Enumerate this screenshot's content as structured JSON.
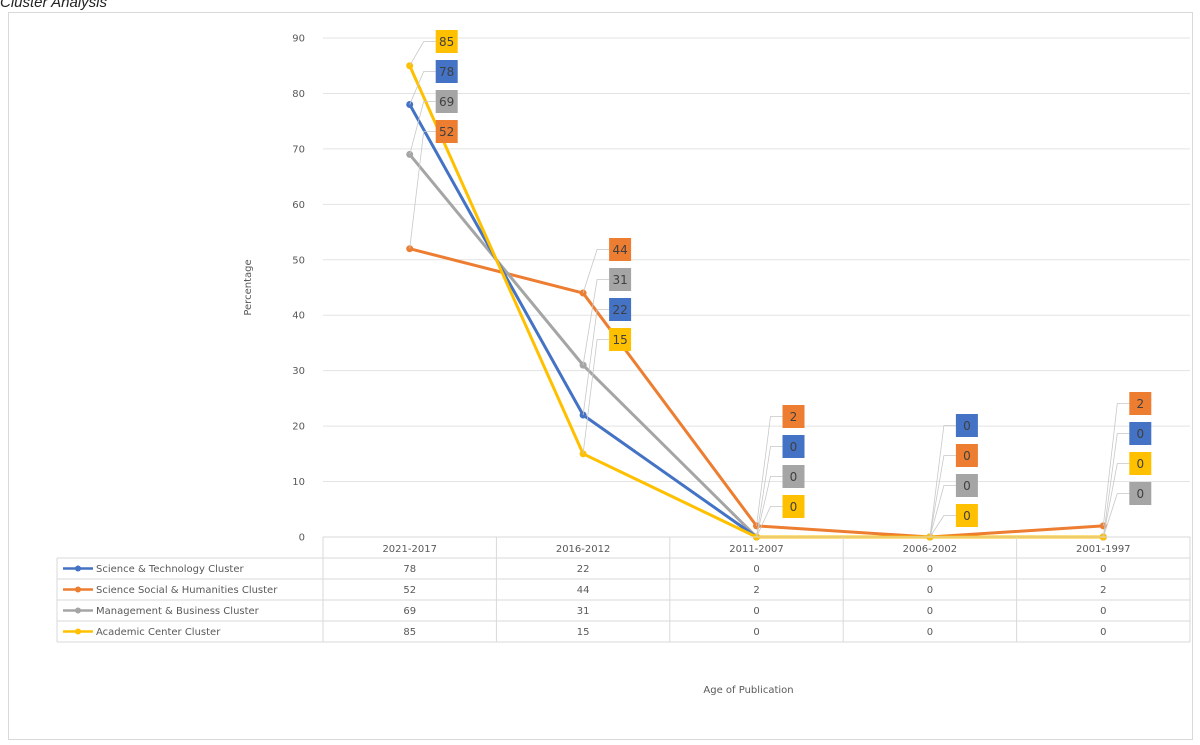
{
  "caption": "Cluster Analysis",
  "chart_data": {
    "type": "line",
    "title": "",
    "xlabel": "Age of Publication",
    "ylabel": "Percentage",
    "ylim": [
      0,
      90
    ],
    "yticks": [
      0,
      10,
      20,
      30,
      40,
      50,
      60,
      70,
      80,
      90
    ],
    "grid": true,
    "legend": "data-table",
    "categories": [
      "2021-2017",
      "2016-2012",
      "2011-2007",
      "2006-2002",
      "2001-1997"
    ],
    "series": [
      {
        "name": "Science & Technology Cluster",
        "color": "#4472c4",
        "values": [
          78,
          22,
          0,
          0,
          0
        ]
      },
      {
        "name": "Science Social & Humanities Cluster",
        "color": "#ed7d31",
        "values": [
          52,
          44,
          2,
          0,
          2
        ]
      },
      {
        "name": "Management & Business Cluster",
        "color": "#a5a5a5",
        "values": [
          69,
          31,
          0,
          0,
          0
        ]
      },
      {
        "name": "Academic Center Cluster",
        "color": "#ffc000",
        "values": [
          85,
          15,
          0,
          0,
          0
        ]
      }
    ]
  }
}
